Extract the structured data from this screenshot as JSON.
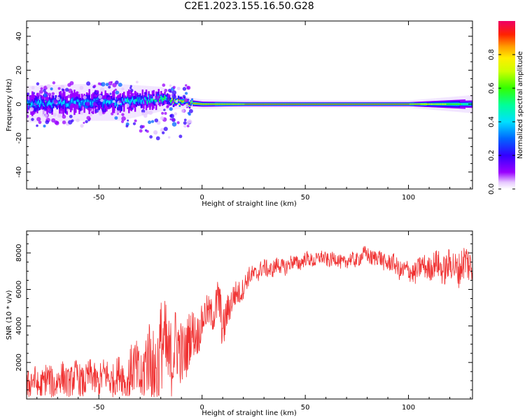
{
  "title": "C2E1.2023.155.16.50.G28",
  "chart_data": [
    {
      "type": "heatmap",
      "xlabel": "Height of straight line (km)",
      "ylabel": "Frequency (Hz)",
      "xlim": [
        -85,
        131
      ],
      "ylim": [
        -50,
        49
      ],
      "xticks": [
        -50,
        0,
        50,
        100
      ],
      "yticks": [
        -40,
        -20,
        0,
        20,
        40
      ],
      "grid": false,
      "colorbar": {
        "label": "Normalized spectral amplitude",
        "range": [
          0,
          1
        ],
        "ticks": [
          "0.0",
          "0.2",
          "0.4",
          "0.6",
          "0.8"
        ],
        "colormap": "rainbow (white → violet → blue → cyan → green → yellow → orange → red → magenta)"
      },
      "description_points": [
        {
          "x": -85,
          "freq_center": 0,
          "spread_hz": 6,
          "peak": 0.45
        },
        {
          "x": -60,
          "freq_center": 1,
          "spread_hz": 6,
          "peak": 0.45
        },
        {
          "x": -40,
          "freq_center": 1,
          "spread_hz": 6,
          "peak": 0.45
        },
        {
          "x": -20,
          "freq_center": 3,
          "spread_hz": 4,
          "peak": 0.6
        },
        {
          "x": -10,
          "freq_center": 1,
          "spread_hz": 2,
          "peak": 0.9
        },
        {
          "x": 0,
          "freq_center": 0,
          "spread_hz": 1.5,
          "peak": 0.9
        },
        {
          "x": 20,
          "freq_center": 0,
          "spread_hz": 1.2,
          "peak": 0.95
        },
        {
          "x": 60,
          "freq_center": 0,
          "spread_hz": 1.2,
          "peak": 0.95
        },
        {
          "x": 100,
          "freq_center": 0,
          "spread_hz": 1.2,
          "peak": 0.95
        },
        {
          "x": 131,
          "freq_center": 0,
          "spread_hz": 3,
          "peak": 0.55
        }
      ]
    },
    {
      "type": "line",
      "xlabel": "Height of straight line (km)",
      "ylabel": "SNR (10 * v/v)",
      "xlim": [
        -85,
        131
      ],
      "ylim": [
        0,
        9200
      ],
      "xticks": [
        -50,
        0,
        50,
        100
      ],
      "yticks": [
        2000,
        4000,
        6000,
        8000
      ],
      "grid": false,
      "series": [
        {
          "color": "#f03030",
          "trend_x": [
            -85,
            -70,
            -55,
            -40,
            -30,
            -22,
            -17,
            -12,
            -7,
            -3,
            0,
            3,
            6,
            8,
            10,
            12,
            15,
            20,
            25,
            30,
            40,
            50,
            60,
            70,
            80,
            90,
            100,
            110,
            120,
            131
          ],
          "trend_y": [
            800,
            1000,
            1100,
            1200,
            1500,
            2200,
            2700,
            2500,
            3000,
            3600,
            4200,
            4700,
            4900,
            5300,
            3500,
            5000,
            5400,
            6200,
            6900,
            7100,
            7300,
            7600,
            7700,
            7500,
            7900,
            7500,
            6900,
            7300,
            7200,
            7400
          ],
          "noise_amplitude": [
            900,
            900,
            900,
            1000,
            1800,
            2600,
            2600,
            2000,
            1600,
            1200,
            1000,
            900,
            1000,
            1400,
            1200,
            1000,
            800,
            600,
            500,
            500,
            450,
            400,
            400,
            400,
            450,
            500,
            600,
            700,
            900,
            1100
          ]
        }
      ]
    }
  ]
}
